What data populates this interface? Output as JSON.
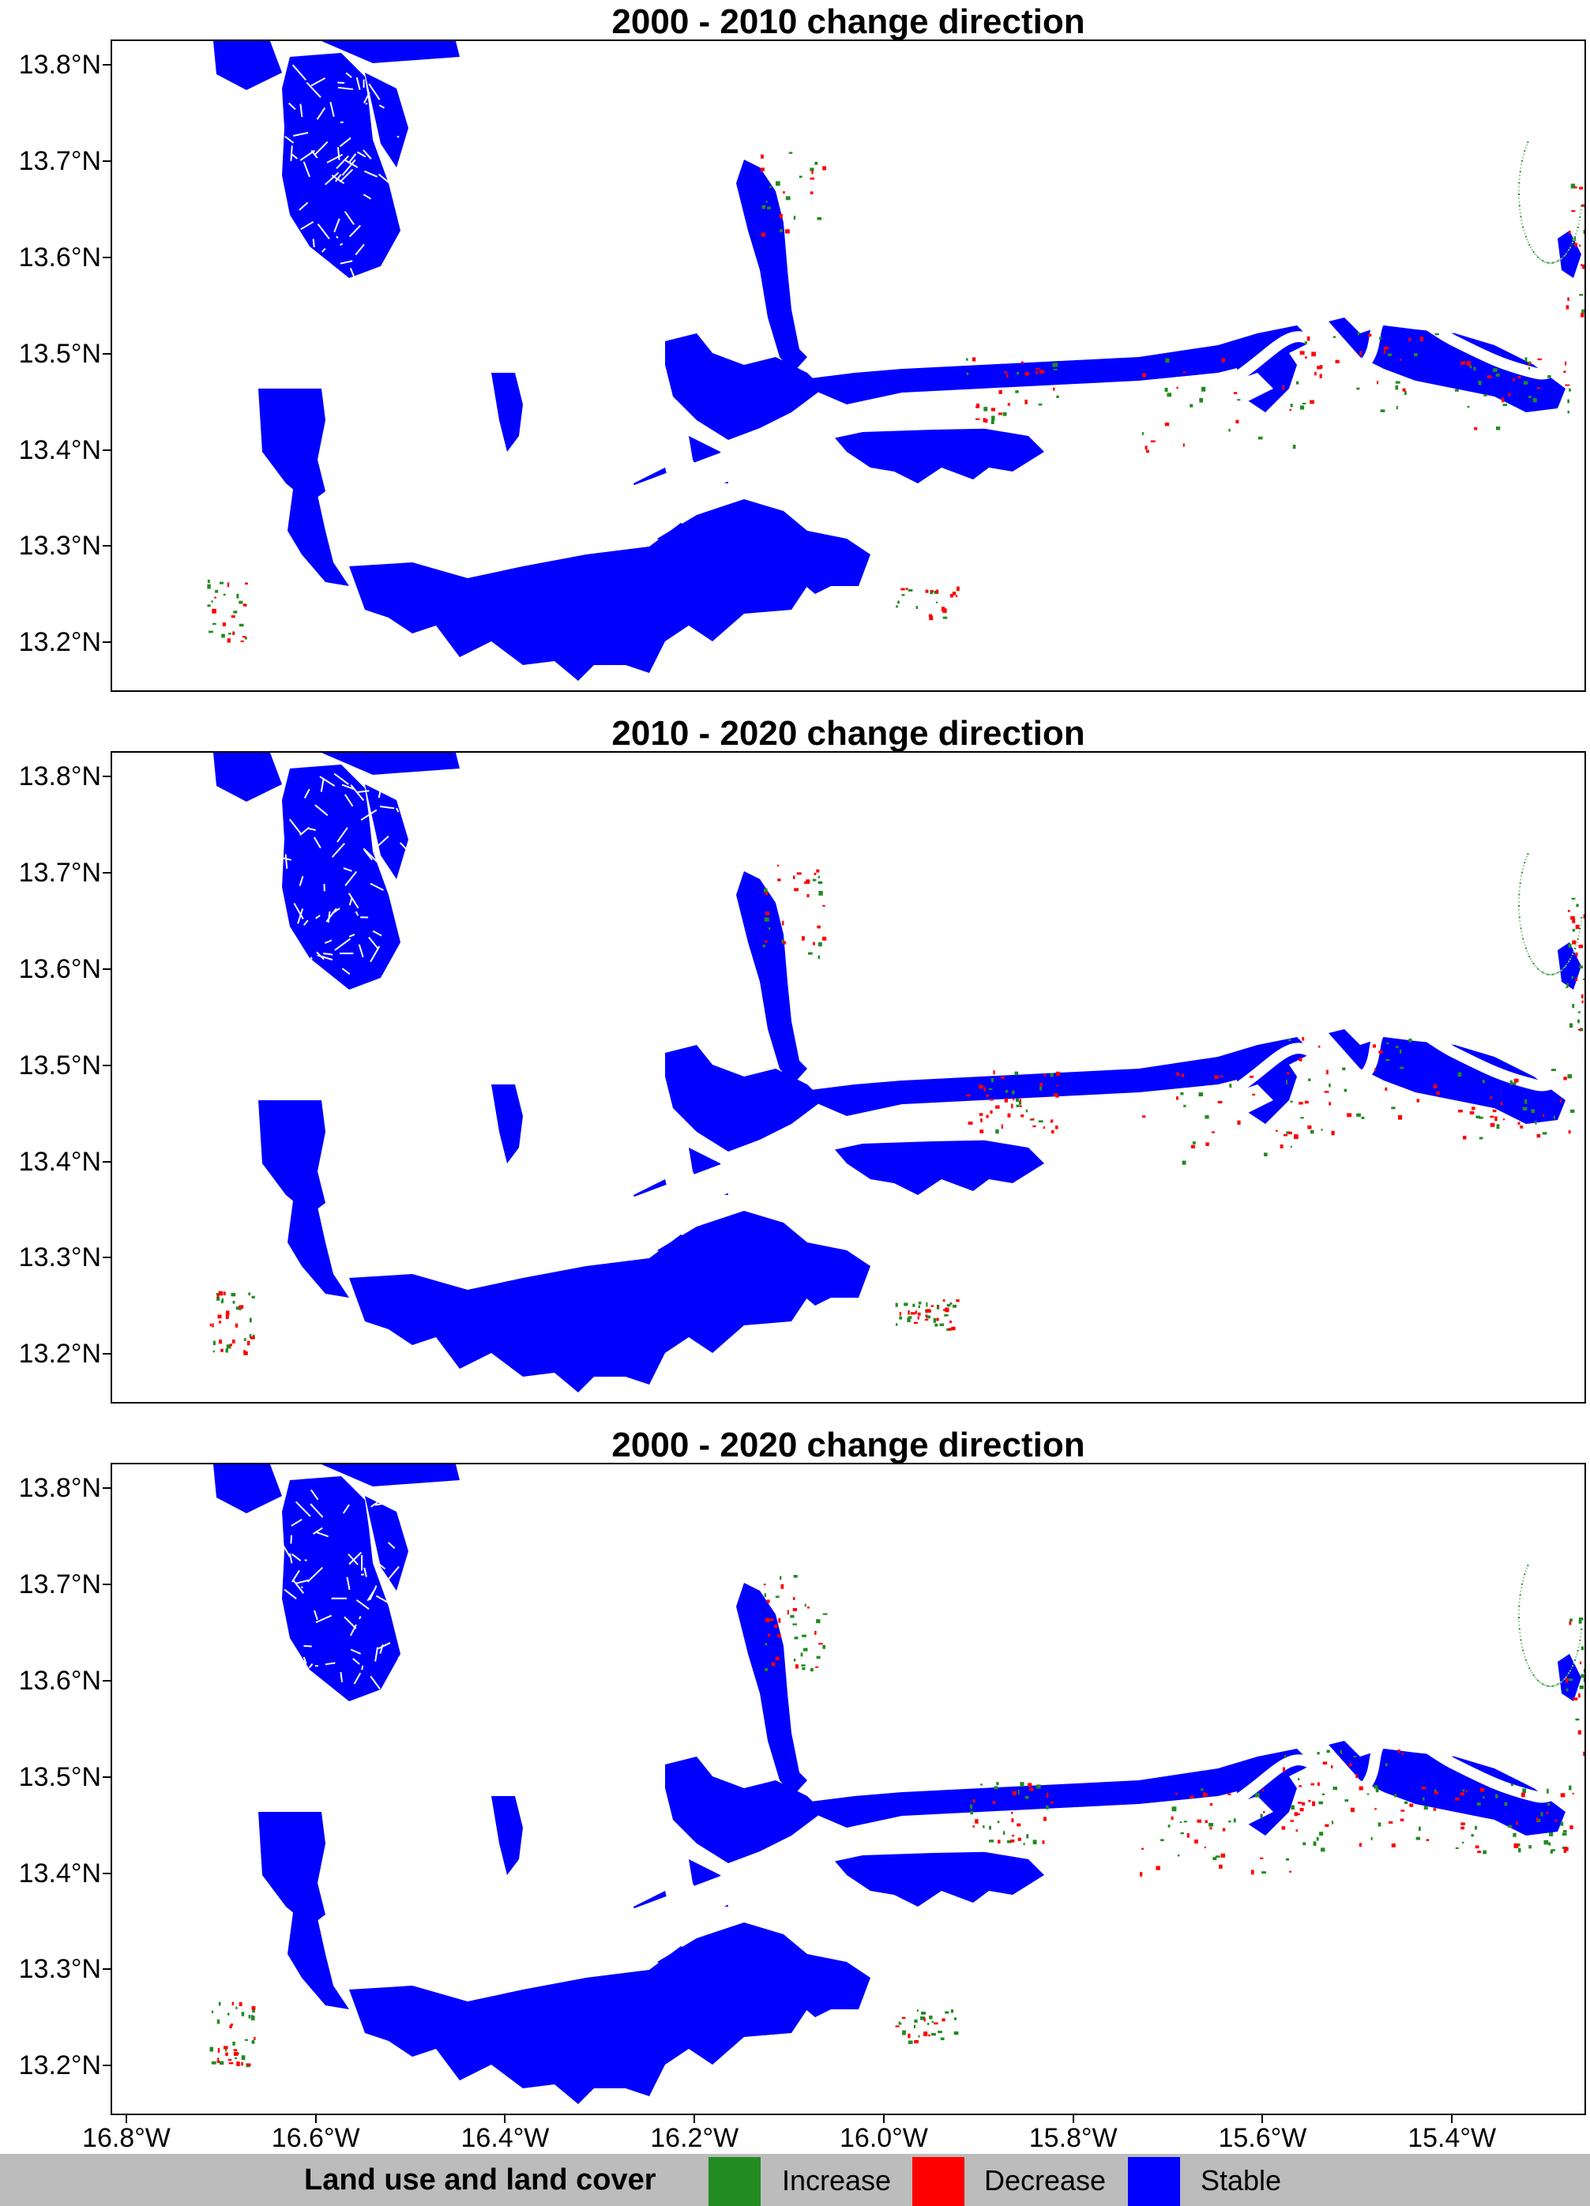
{
  "panels": [
    {
      "title": "2000 - 2010 change direction",
      "variant": 0
    },
    {
      "title": "2010 - 2020 change direction",
      "variant": 1
    },
    {
      "title": "2000 - 2020 change direction",
      "variant": 2
    }
  ],
  "y_axis": {
    "tick_labels": [
      "13.8°N",
      "13.7°N",
      "13.6°N",
      "13.5°N",
      "13.4°N",
      "13.3°N",
      "13.2°N"
    ],
    "values": [
      13.8,
      13.7,
      13.6,
      13.5,
      13.4,
      13.3,
      13.2
    ],
    "range": [
      13.15,
      13.825
    ]
  },
  "x_axis": {
    "tick_labels": [
      "16.8°W",
      "16.6°W",
      "16.4°W",
      "16.2°W",
      "16.0°W",
      "15.8°W",
      "15.6°W",
      "15.4°W"
    ],
    "values": [
      -16.8,
      -16.6,
      -16.4,
      -16.2,
      -16.0,
      -15.8,
      -15.6,
      -15.4
    ],
    "range": [
      -16.815,
      -15.26
    ]
  },
  "legend": {
    "title": "Land use and land cover",
    "placement": "bottom",
    "items": [
      {
        "label": "Increase",
        "color": "#228b22"
      },
      {
        "label": "Decrease",
        "color": "#ff0000"
      },
      {
        "label": "Stable",
        "color": "#0000ff"
      }
    ]
  },
  "colors": {
    "stable": "#0000ff",
    "increase": "#228b22",
    "decrease": "#ff0000"
  }
}
